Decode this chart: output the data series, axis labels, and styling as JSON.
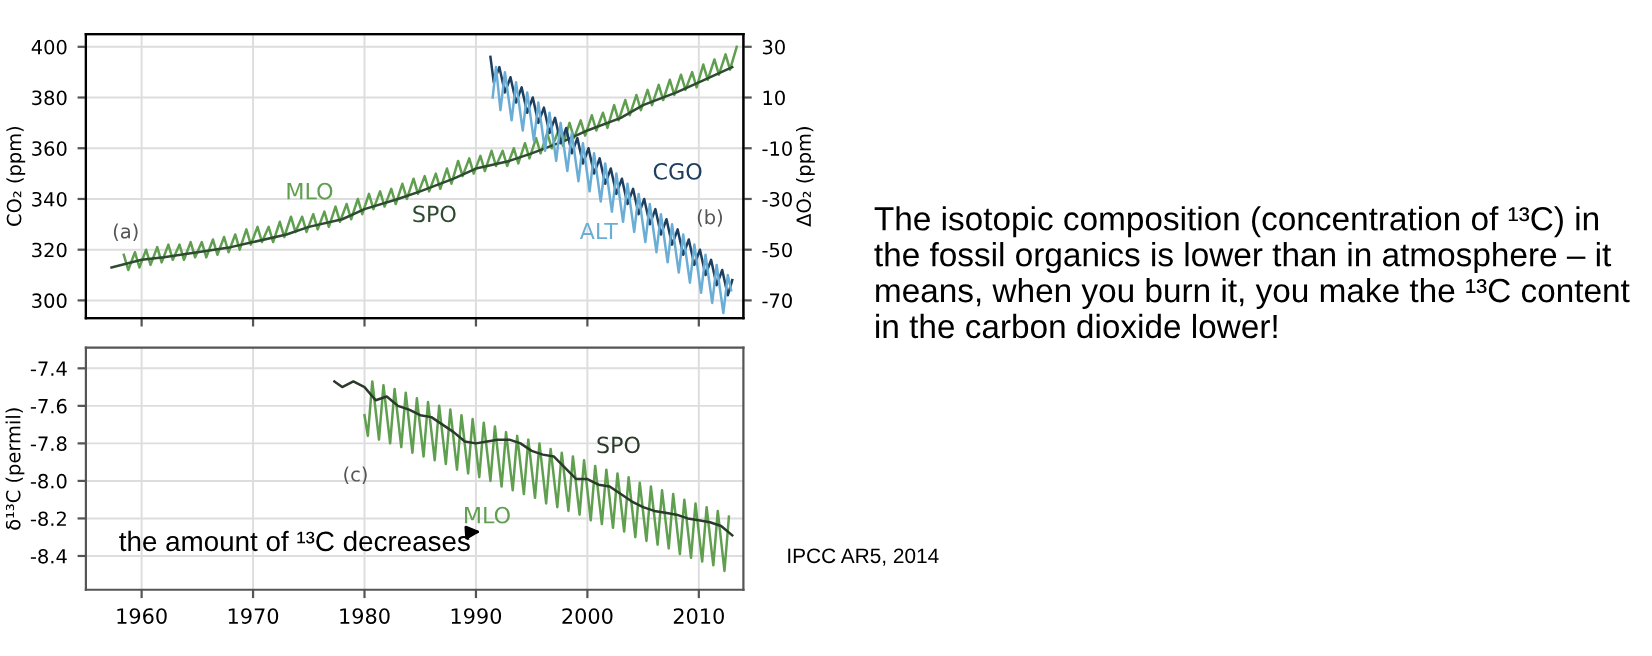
{
  "chart_data": [
    {
      "type": "line",
      "ylabel": "CO₂ (ppm)",
      "y2label": "ΔO₂ (ppm)",
      "xlim": [
        1955,
        2014
      ],
      "xticks": [
        1960,
        1970,
        1980,
        1990,
        2000,
        2010
      ],
      "ylim": [
        293,
        405
      ],
      "yticks": [
        300,
        320,
        340,
        360,
        380,
        400
      ],
      "y2lim": [
        -77,
        35
      ],
      "y2ticks": [
        30,
        10,
        -10,
        -30,
        -50,
        -70
      ],
      "tick_labels": "y",
      "grid": true,
      "annotations": [
        "(a)",
        "(b)"
      ],
      "series": [
        {
          "name": "MLO",
          "color": "#5f9f4f",
          "x": [
            1958.4,
            1958.8,
            1959.4,
            1959.8,
            1960.4,
            1960.8,
            1961.4,
            1961.8,
            1962.4,
            1962.8,
            1963.4,
            1963.8,
            1964.4,
            1964.8,
            1965.4,
            1965.8,
            1966.4,
            1966.8,
            1967.4,
            1967.8,
            1968.4,
            1968.8,
            1969.4,
            1969.8,
            1970.4,
            1970.8,
            1971.4,
            1971.8,
            1972.4,
            1972.8,
            1973.4,
            1973.8,
            1974.4,
            1974.8,
            1975.4,
            1975.8,
            1976.4,
            1976.8,
            1977.4,
            1977.8,
            1978.4,
            1978.8,
            1979.4,
            1979.8,
            1980.4,
            1980.8,
            1981.4,
            1981.8,
            1982.4,
            1982.8,
            1983.4,
            1983.8,
            1984.4,
            1984.8,
            1985.4,
            1985.8,
            1986.4,
            1986.8,
            1987.4,
            1987.8,
            1988.4,
            1988.8,
            1989.4,
            1989.8,
            1990.4,
            1990.8,
            1991.4,
            1991.8,
            1992.4,
            1992.8,
            1993.4,
            1993.8,
            1994.4,
            1994.8,
            1995.4,
            1995.8,
            1996.4,
            1996.8,
            1997.4,
            1997.8,
            1998.4,
            1998.8,
            1999.4,
            1999.8,
            2000.4,
            2000.8,
            2001.4,
            2001.8,
            2002.4,
            2002.8,
            2003.4,
            2003.8,
            2004.4,
            2004.8,
            2005.4,
            2005.8,
            2006.4,
            2006.8,
            2007.4,
            2007.8,
            2008.4,
            2008.8,
            2009.4,
            2009.8,
            2010.4,
            2010.8,
            2011.4,
            2011.8,
            2012.4,
            2012.8,
            2013.4
          ],
          "values": [
            318,
            312,
            319,
            313,
            320,
            314,
            321,
            315,
            322,
            316,
            322,
            316,
            323,
            317,
            323,
            317,
            324,
            318,
            325,
            319,
            326,
            320,
            328,
            322,
            329,
            323,
            329,
            323,
            331,
            325,
            333,
            327,
            333,
            327,
            334,
            328,
            335,
            329,
            337,
            331,
            338,
            332,
            340,
            334,
            342,
            336,
            343,
            337,
            344,
            338,
            346,
            340,
            348,
            342,
            349,
            343,
            350,
            344,
            352,
            346,
            355,
            349,
            356,
            350,
            357,
            351,
            359,
            353,
            359,
            353,
            360,
            354,
            362,
            356,
            364,
            358,
            366,
            360,
            367,
            361,
            370,
            364,
            371,
            365,
            373,
            367,
            374,
            368,
            377,
            371,
            379,
            373,
            381,
            375,
            383,
            377,
            385,
            379,
            387,
            381,
            389,
            383,
            390,
            384,
            393,
            387,
            395,
            389,
            397,
            391,
            400
          ]
        },
        {
          "name": "SPO",
          "color": "#2e4a30",
          "x": [
            1957.3,
            1960,
            1962,
            1965,
            1968,
            1970,
            1973,
            1975,
            1978,
            1980,
            1983,
            1985,
            1988,
            1990,
            1993,
            1995,
            1998,
            2000,
            2003,
            2005,
            2008,
            2010,
            2013
          ],
          "values": [
            313,
            316,
            317,
            319,
            321,
            323,
            326,
            329,
            332,
            336,
            340,
            343,
            348,
            352,
            355,
            358,
            363,
            367,
            372,
            377,
            382,
            386,
            392
          ]
        },
        {
          "name": "CGO",
          "color": "#1d3e5e",
          "axis": "y2",
          "x": [
            1991.3,
            1991.6,
            1992.1,
            1992.6,
            1993.1,
            1993.6,
            1994.1,
            1994.6,
            1995.1,
            1995.6,
            1996.1,
            1996.6,
            1997.1,
            1997.6,
            1998.1,
            1998.6,
            1999.1,
            1999.6,
            2000.1,
            2000.6,
            2001.1,
            2001.6,
            2002.1,
            2002.6,
            2003.1,
            2003.6,
            2004.1,
            2004.6,
            2005.1,
            2005.6,
            2006.1,
            2006.6,
            2007.1,
            2007.6,
            2008.1,
            2008.6,
            2009.1,
            2009.6,
            2010.1,
            2010.6,
            2011.1,
            2011.6,
            2012.1,
            2012.6,
            2013.0
          ],
          "values": [
            26,
            16,
            22,
            12,
            18,
            8,
            14,
            4,
            10,
            0,
            6,
            -4,
            2,
            -8,
            -2,
            -12,
            -6,
            -16,
            -10,
            -20,
            -14,
            -24,
            -18,
            -28,
            -22,
            -32,
            -26,
            -36,
            -30,
            -40,
            -34,
            -44,
            -38,
            -48,
            -42,
            -52,
            -46,
            -56,
            -50,
            -60,
            -54,
            -64,
            -58,
            -68,
            -62
          ]
        },
        {
          "name": "ALT",
          "color": "#6aaed6",
          "axis": "y2",
          "x": [
            1991.5,
            1991.8,
            1992.2,
            1992.6,
            1993.2,
            1993.6,
            1994.2,
            1994.6,
            1995.2,
            1995.6,
            1996.2,
            1996.6,
            1997.2,
            1997.6,
            1998.2,
            1998.6,
            1999.2,
            1999.6,
            2000.2,
            2000.6,
            2001.2,
            2001.6,
            2002.2,
            2002.6,
            2003.2,
            2003.6,
            2004.2,
            2004.6,
            2005.2,
            2005.6,
            2006.2,
            2006.6,
            2007.2,
            2007.6,
            2008.2,
            2008.6,
            2009.2,
            2009.6,
            2010.2,
            2010.6,
            2011.2,
            2011.6,
            2012.2,
            2012.6,
            2012.9
          ],
          "values": [
            10,
            22,
            5,
            20,
            1,
            16,
            -3,
            12,
            -7,
            8,
            -11,
            4,
            -15,
            0,
            -19,
            -4,
            -23,
            -8,
            -27,
            -12,
            -31,
            -16,
            -35,
            -20,
            -39,
            -24,
            -43,
            -28,
            -47,
            -32,
            -51,
            -36,
            -55,
            -40,
            -59,
            -44,
            -63,
            -48,
            -67,
            -52,
            -71,
            -56,
            -75,
            -60,
            -66
          ]
        }
      ]
    },
    {
      "type": "line",
      "ylabel": "δ¹³C (permil)",
      "xlim": [
        1955,
        2014
      ],
      "xticks": [
        1960,
        1970,
        1980,
        1990,
        2000,
        2010
      ],
      "ylim": [
        -8.58,
        -7.29
      ],
      "yticks": [
        -7.4,
        -7.6,
        -7.8,
        {
          "value": -8.0,
          "label": "-8.0"
        },
        -8.2,
        -8.4
      ],
      "grid": true,
      "annotations": [
        "(c)",
        "the amount of ¹³C decreases"
      ],
      "series": [
        {
          "name": "MLO",
          "color": "#5f9f4f",
          "x": [
            1980.0,
            1980.3,
            1980.7,
            1981.3,
            1981.7,
            1982.3,
            1982.7,
            1983.3,
            1983.7,
            1984.3,
            1984.7,
            1985.3,
            1985.7,
            1986.3,
            1986.7,
            1987.3,
            1987.7,
            1988.3,
            1988.7,
            1989.3,
            1989.7,
            1990.3,
            1990.7,
            1991.3,
            1991.7,
            1992.3,
            1992.7,
            1993.3,
            1993.7,
            1994.3,
            1994.7,
            1995.3,
            1995.7,
            1996.3,
            1996.7,
            1997.3,
            1997.7,
            1998.3,
            1998.7,
            1999.3,
            1999.7,
            2000.3,
            2000.7,
            2001.3,
            2001.7,
            2002.3,
            2002.7,
            2003.3,
            2003.7,
            2004.3,
            2004.7,
            2005.3,
            2005.7,
            2006.3,
            2006.7,
            2007.3,
            2007.7,
            2008.3,
            2008.7,
            2009.3,
            2009.7,
            2010.3,
            2010.7,
            2011.3,
            2011.7,
            2012.3,
            2012.7
          ],
          "values": [
            -7.65,
            -7.76,
            -7.47,
            -7.78,
            -7.49,
            -7.8,
            -7.51,
            -7.82,
            -7.53,
            -7.85,
            -7.56,
            -7.87,
            -7.58,
            -7.89,
            -7.6,
            -7.91,
            -7.62,
            -7.94,
            -7.65,
            -7.96,
            -7.67,
            -7.98,
            -7.69,
            -8.0,
            -7.71,
            -8.03,
            -7.74,
            -8.05,
            -7.76,
            -8.07,
            -7.78,
            -8.09,
            -7.8,
            -8.12,
            -7.83,
            -8.14,
            -7.85,
            -8.16,
            -7.87,
            -8.18,
            -7.89,
            -8.21,
            -7.92,
            -8.23,
            -7.94,
            -8.25,
            -7.96,
            -8.27,
            -7.98,
            -8.3,
            -8.01,
            -8.32,
            -8.03,
            -8.34,
            -8.05,
            -8.36,
            -8.07,
            -8.39,
            -8.1,
            -8.41,
            -8.12,
            -8.43,
            -8.14,
            -8.45,
            -8.16,
            -8.48,
            -8.19
          ]
        },
        {
          "name": "SPO",
          "color": "#2b3a2b",
          "x": [
            1977.3,
            1978,
            1979,
            1980,
            1981,
            1982,
            1983,
            1984,
            1985,
            1986,
            1987,
            1988,
            1989,
            1990,
            1991,
            1992,
            1993,
            1994,
            1995,
            1996,
            1997,
            1998,
            1999,
            2000,
            2001,
            2002,
            2003,
            2004,
            2005,
            2006,
            2007,
            2008,
            2009,
            2010,
            2011,
            2012,
            2013
          ],
          "values": [
            -7.47,
            -7.5,
            -7.47,
            -7.5,
            -7.57,
            -7.55,
            -7.6,
            -7.62,
            -7.65,
            -7.66,
            -7.7,
            -7.74,
            -7.79,
            -7.8,
            -7.79,
            -7.78,
            -7.78,
            -7.8,
            -7.84,
            -7.86,
            -7.87,
            -7.93,
            -7.99,
            -7.99,
            -8.02,
            -8.03,
            -8.07,
            -8.11,
            -8.14,
            -8.16,
            -8.17,
            -8.18,
            -8.2,
            -8.21,
            -8.22,
            -8.24,
            -8.29
          ]
        }
      ]
    },
    {
      "type": "other",
      "annotations": [
        "The isotopic composition (concentration of ¹³C) in the fossil organics is lower than in atmosphere – it means, when you burn it, you make the ¹³C content in the carbon dioxide lower!",
        "IPCC AR5, 2014"
      ]
    }
  ]
}
